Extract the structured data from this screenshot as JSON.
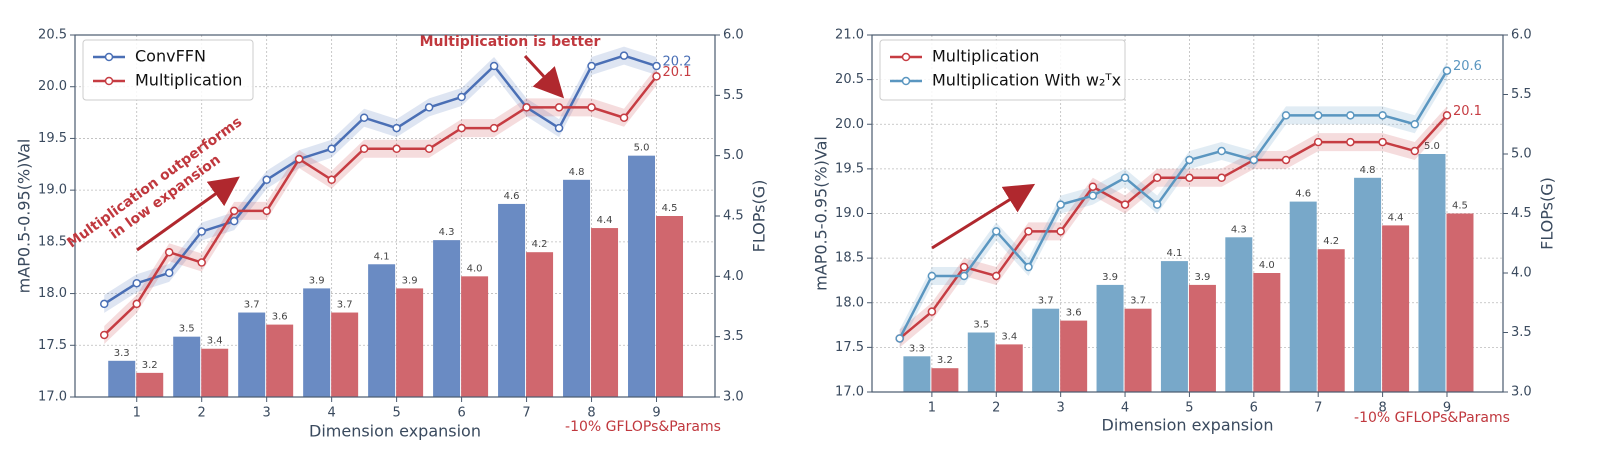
{
  "chart_data": [
    {
      "type": "combo",
      "xlabel": "Dimension expansion",
      "ylabel": "mAP0.5-0.95(%)Val",
      "y2label": "FLOPs(G)",
      "xlim": [
        0.05,
        9.9
      ],
      "xticks": [
        1,
        2,
        3,
        4,
        5,
        6,
        7,
        8,
        9
      ],
      "ylim": [
        17.0,
        20.5
      ],
      "yticks": [
        {
          "value": 17.0,
          "label": "17.0"
        },
        17.5,
        {
          "value": 18.0,
          "label": "18.0"
        },
        18.5,
        {
          "value": 19.0,
          "label": "19.0"
        },
        19.5,
        {
          "value": 20.0,
          "label": "20.0"
        },
        20.5
      ],
      "y2lim": [
        3.0,
        6.0
      ],
      "y2ticks": [
        {
          "value": 3.0,
          "label": "3.0"
        },
        3.5,
        {
          "value": 4.0,
          "label": "4.0"
        },
        4.5,
        {
          "value": 5.0,
          "label": "5.0"
        },
        5.5,
        {
          "value": 6.0,
          "label": "6.0"
        }
      ],
      "grid": true,
      "legend": "upper left",
      "x": [
        0.5,
        1,
        1.5,
        2,
        2.5,
        3,
        3.5,
        4,
        4.5,
        5,
        5.5,
        6,
        6.5,
        7,
        7.5,
        8,
        8.5,
        9
      ],
      "series": [
        {
          "name": "ConvFFN",
          "color": "#4a6fb5",
          "values": [
            17.9,
            18.1,
            18.2,
            18.6,
            18.7,
            19.1,
            19.3,
            19.4,
            19.7,
            19.6,
            19.8,
            19.9,
            20.2,
            19.8,
            19.6,
            20.2,
            20.3,
            20.2
          ]
        },
        {
          "name": "Multiplication",
          "color": "#c63c42",
          "values": [
            17.6,
            17.9,
            18.4,
            18.3,
            18.8,
            18.8,
            19.3,
            19.1,
            19.4,
            19.4,
            19.4,
            19.6,
            19.6,
            19.8,
            19.8,
            19.8,
            19.7,
            20.1
          ]
        }
      ],
      "bars": [
        {
          "color": "#6a8bc3",
          "axis": "y2",
          "values": [
            3.3,
            3.5,
            3.7,
            3.9,
            4.1,
            4.3,
            4.6,
            4.8,
            5.0
          ],
          "value_labels": [
            "3.3",
            "3.5",
            "3.7",
            "3.9",
            "4.1",
            "4.3",
            "4.6",
            "4.8",
            "5.0"
          ]
        },
        {
          "color": "#d0676e",
          "axis": "y2",
          "values": [
            3.2,
            3.4,
            3.6,
            3.7,
            3.9,
            4.0,
            4.2,
            4.4,
            4.5
          ],
          "value_labels": [
            "3.2",
            "3.4",
            "3.6",
            "3.7",
            "3.9",
            "4.0",
            "4.2",
            "4.4",
            "4.5"
          ]
        }
      ],
      "annotations": [
        "Multiplication is better",
        "Multiplication outperforms",
        "in low expansion",
        "-10% GFLOPs&Params"
      ]
    },
    {
      "type": "combo",
      "xlabel": "Dimension expansion",
      "ylabel": "mAP0.5-0.95(%)Val",
      "y2label": "FLOPs(G)",
      "xlim": [
        0.07,
        9.87
      ],
      "xticks": [
        1,
        2,
        3,
        4,
        5,
        6,
        7,
        8,
        9
      ],
      "ylim": [
        17.0,
        21.0
      ],
      "yticks": [
        {
          "value": 17.0,
          "label": "17.0"
        },
        17.5,
        {
          "value": 18.0,
          "label": "18.0"
        },
        18.5,
        {
          "value": 19.0,
          "label": "19.0"
        },
        19.5,
        {
          "value": 20.0,
          "label": "20.0"
        },
        20.5,
        {
          "value": 21.0,
          "label": "21.0"
        }
      ],
      "y2lim": [
        3.0,
        6.0
      ],
      "y2ticks": [
        {
          "value": 3.0,
          "label": "3.0"
        },
        3.5,
        {
          "value": 4.0,
          "label": "4.0"
        },
        4.5,
        {
          "value": 5.0,
          "label": "5.0"
        },
        5.5,
        {
          "value": 6.0,
          "label": "6.0"
        }
      ],
      "grid": true,
      "legend": "upper left",
      "x": [
        0.5,
        1,
        1.5,
        2,
        2.5,
        3,
        3.5,
        4,
        4.5,
        5,
        5.5,
        6,
        6.5,
        7,
        7.5,
        8,
        8.5,
        9
      ],
      "series": [
        {
          "name": "Multiplication",
          "color": "#c63c42",
          "values": [
            17.6,
            17.9,
            18.4,
            18.3,
            18.8,
            18.8,
            19.3,
            19.1,
            19.4,
            19.4,
            19.4,
            19.6,
            19.6,
            19.8,
            19.8,
            19.8,
            19.7,
            20.1
          ]
        },
        {
          "name": "Multiplication With w₂ᵀx",
          "color": "#5a96c0",
          "values": [
            17.6,
            18.3,
            18.3,
            18.8,
            18.4,
            19.1,
            19.2,
            19.4,
            19.1,
            19.6,
            19.7,
            19.6,
            20.1,
            20.1,
            20.1,
            20.1,
            20.0,
            20.6
          ]
        }
      ],
      "bars": [
        {
          "color": "#78a8c9",
          "axis": "y2",
          "values": [
            3.3,
            3.5,
            3.7,
            3.9,
            4.1,
            4.3,
            4.6,
            4.8,
            5.0
          ],
          "value_labels": [
            "3.3",
            "3.5",
            "3.7",
            "3.9",
            "4.1",
            "4.3",
            "4.6",
            "4.8",
            "5.0"
          ]
        },
        {
          "color": "#d0676e",
          "axis": "y2",
          "values": [
            3.2,
            3.4,
            3.6,
            3.7,
            3.9,
            4.0,
            4.2,
            4.4,
            4.5
          ],
          "value_labels": [
            "3.2",
            "3.4",
            "3.6",
            "3.7",
            "3.9",
            "4.0",
            "4.2",
            "4.4",
            "4.5"
          ]
        }
      ],
      "annotations": [
        "-10% GFLOPs&Params"
      ]
    }
  ]
}
